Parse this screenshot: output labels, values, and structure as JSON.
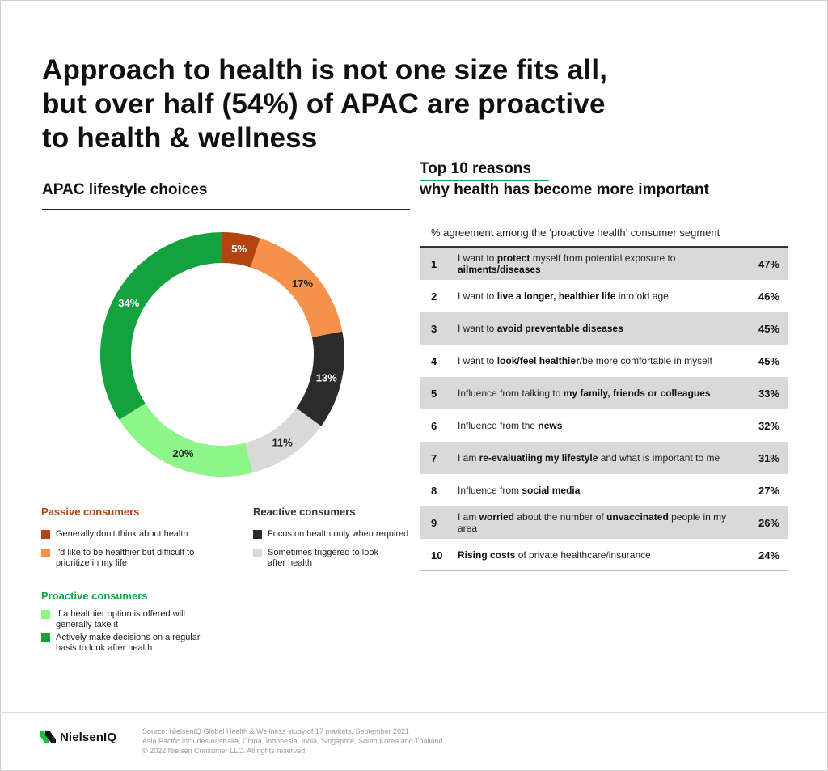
{
  "title": {
    "line1": "Approach to health is not one size fits all,",
    "line2": "but over half (54%) of APAC are proactive",
    "line3": "to health & wellness"
  },
  "left_heading": "APAC lifestyle choices",
  "right_heading": {
    "line1": "Top 10 reasons",
    "line2": "why health has become more important"
  },
  "colors": {
    "dark_orange": "#b3440f",
    "light_orange": "#f5914a",
    "black": "#2b2b2b",
    "grey": "#d9d9d9",
    "light_green": "#8ef58a",
    "green": "#13a23e",
    "passive_title": "#b3440f",
    "proactive_title": "#13a23e",
    "reactive_title": "#333333",
    "accent_underline": "#16a34a"
  },
  "chart_data": [
    {
      "type": "pie",
      "variant": "donut",
      "title": "APAC lifestyle choices",
      "slices": [
        {
          "name": "Generally don't think about health",
          "value": 5,
          "label": "5%",
          "color": "#b3440f",
          "label_color": "#ffffff"
        },
        {
          "name": "I'd like to be healthier but difficult to prioritize in my life",
          "value": 17,
          "label": "17%",
          "color": "#f5914a",
          "label_color": "#222222"
        },
        {
          "name": "Focus on health only when required",
          "value": 13,
          "label": "13%",
          "color": "#2b2b2b",
          "label_color": "#ffffff"
        },
        {
          "name": "Sometimes triggered to look after health",
          "value": 11,
          "label": "11%",
          "color": "#d9d9d9",
          "label_color": "#222222"
        },
        {
          "name": "If a healthier option is offered will generally take it",
          "value": 20,
          "label": "20%",
          "color": "#8ef58a",
          "label_color": "#222222"
        },
        {
          "name": "Actively make decisions on a regular basis to look after health",
          "value": 34,
          "label": "34%",
          "color": "#13a23e",
          "label_color": "#ffffff"
        }
      ]
    },
    {
      "type": "table",
      "title": "Top 10 reasons why health has become more important",
      "caption": "% agreement among the ‘proactive health’ consumer segment",
      "rows": [
        {
          "rank": "1",
          "segments": [
            {
              "t": "I want to "
            },
            {
              "t": "protect",
              "b": true
            },
            {
              "t": " myself from potential exposure to "
            },
            {
              "t": "ailments/diseases",
              "b": true
            }
          ],
          "value": 47,
          "label": "47%"
        },
        {
          "rank": "2",
          "segments": [
            {
              "t": "I want to "
            },
            {
              "t": "live a longer, healthier life",
              "b": true
            },
            {
              "t": " into old age"
            }
          ],
          "value": 46,
          "label": "46%"
        },
        {
          "rank": "3",
          "segments": [
            {
              "t": "I want to "
            },
            {
              "t": "avoid preventable diseases",
              "b": true
            }
          ],
          "value": 45,
          "label": "45%"
        },
        {
          "rank": "4",
          "segments": [
            {
              "t": "I want to "
            },
            {
              "t": "look/feel healthier",
              "b": true
            },
            {
              "t": "/be more comfortable in myself"
            }
          ],
          "value": 45,
          "label": "45%"
        },
        {
          "rank": "5",
          "segments": [
            {
              "t": "Influence from talking to "
            },
            {
              "t": "my family, friends or colleagues",
              "b": true
            }
          ],
          "value": 33,
          "label": "33%"
        },
        {
          "rank": "6",
          "segments": [
            {
              "t": "Influence from the "
            },
            {
              "t": "news",
              "b": true
            }
          ],
          "value": 32,
          "label": "32%"
        },
        {
          "rank": "7",
          "segments": [
            {
              "t": "I am "
            },
            {
              "t": "re-evaluatiing my lifestyle",
              "b": true
            },
            {
              "t": " and what is important to me"
            }
          ],
          "value": 31,
          "label": "31%"
        },
        {
          "rank": "8",
          "segments": [
            {
              "t": "Influence from "
            },
            {
              "t": "social media",
              "b": true
            }
          ],
          "value": 27,
          "label": "27%"
        },
        {
          "rank": "9",
          "segments": [
            {
              "t": "I am "
            },
            {
              "t": "worried",
              "b": true
            },
            {
              "t": " about the number of "
            },
            {
              "t": "unvaccinated",
              "b": true
            },
            {
              "t": " people in my area"
            }
          ],
          "value": 26,
          "label": "26%"
        },
        {
          "rank": "10",
          "segments": [
            {
              "t": "Rising costs",
              "b": true
            },
            {
              "t": " of private healthcare/insurance"
            }
          ],
          "value": 24,
          "label": "24%"
        }
      ]
    }
  ],
  "legend": {
    "passive": {
      "title": "Passive consumers",
      "items": [
        {
          "line1": "Generally don't think about health",
          "line2": ""
        },
        {
          "line1": "I'd like to be healthier but difficult to",
          "line2": "prioritize in my life"
        }
      ]
    },
    "reactive": {
      "title": "Reactive consumers",
      "items": [
        {
          "line1": "Focus on health only when required",
          "line2": ""
        },
        {
          "line1": "Sometimes triggered to look",
          "line2": "after health"
        }
      ]
    },
    "proactive": {
      "title": "Proactive consumers",
      "items": [
        {
          "line1": "If a healthier option is offered will",
          "line2": "generally take it"
        },
        {
          "line1": "Actively make decisions on a regular",
          "line2": "basis to look after health"
        }
      ]
    }
  },
  "footer": {
    "logo_text": "NielsenIQ",
    "source_line1": "Source: NielsenIQ Global Health & Wellness study of 17 markets, September 2021",
    "source_line2": "Asia Pacific includes Australia, China, Indonesia, India, Singapore, South Korea and Thailand",
    "source_line3": "© 2022 Nielsen Consumer LLC. All rights reserved."
  }
}
